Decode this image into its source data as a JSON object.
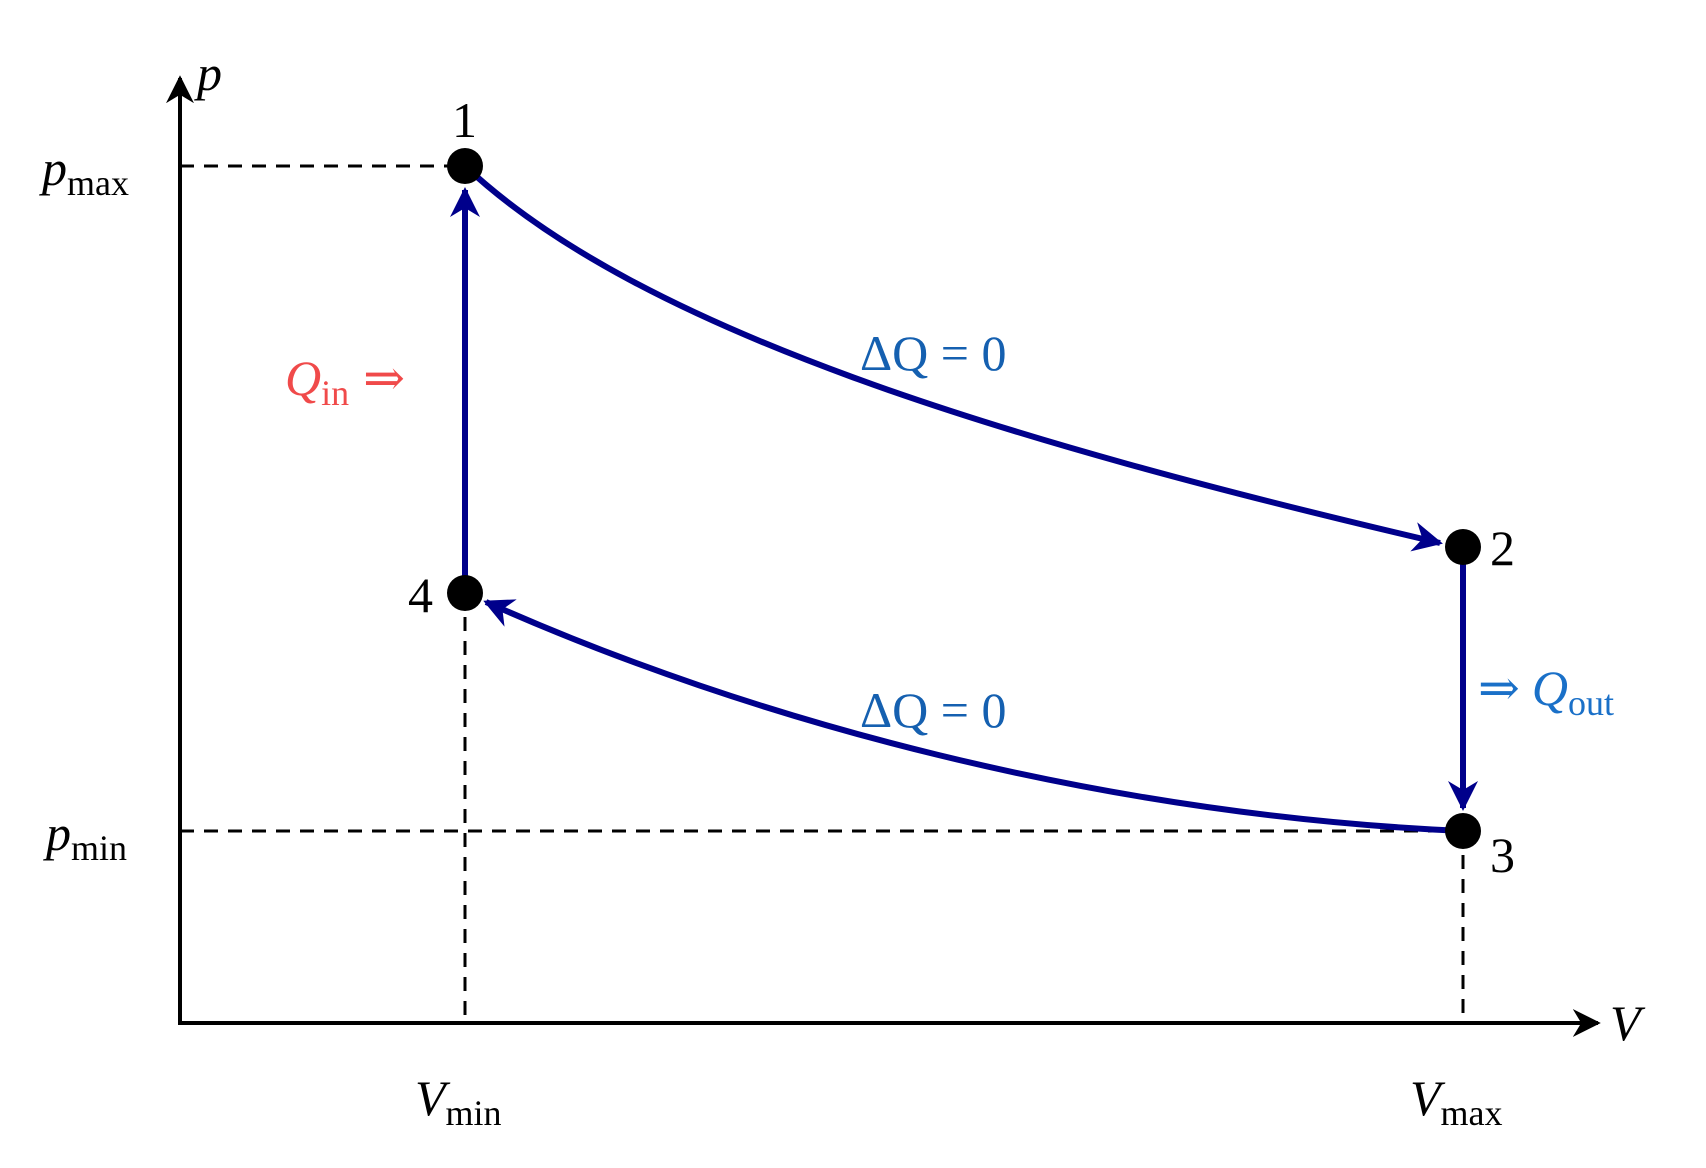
{
  "axes": {
    "x_label": "V",
    "y_label": "p"
  },
  "ticks": {
    "p_max": {
      "base": "p",
      "sub": "max"
    },
    "p_min": {
      "base": "p",
      "sub": "min"
    },
    "V_min": {
      "base": "V",
      "sub": "min"
    },
    "V_max": {
      "base": "V",
      "sub": "max"
    }
  },
  "nodes": [
    {
      "label": "1"
    },
    {
      "label": "2"
    },
    {
      "label": "3"
    },
    {
      "label": "4"
    }
  ],
  "annotations": {
    "heat_in": {
      "base": "Q",
      "sub": "in",
      "arrow": "⇒"
    },
    "heat_out": {
      "arrow": "⇒",
      "base": "Q",
      "sub": "out"
    },
    "adiabat_top": "ΔQ = 0",
    "adiabat_bottom": "ΔQ = 0"
  }
}
